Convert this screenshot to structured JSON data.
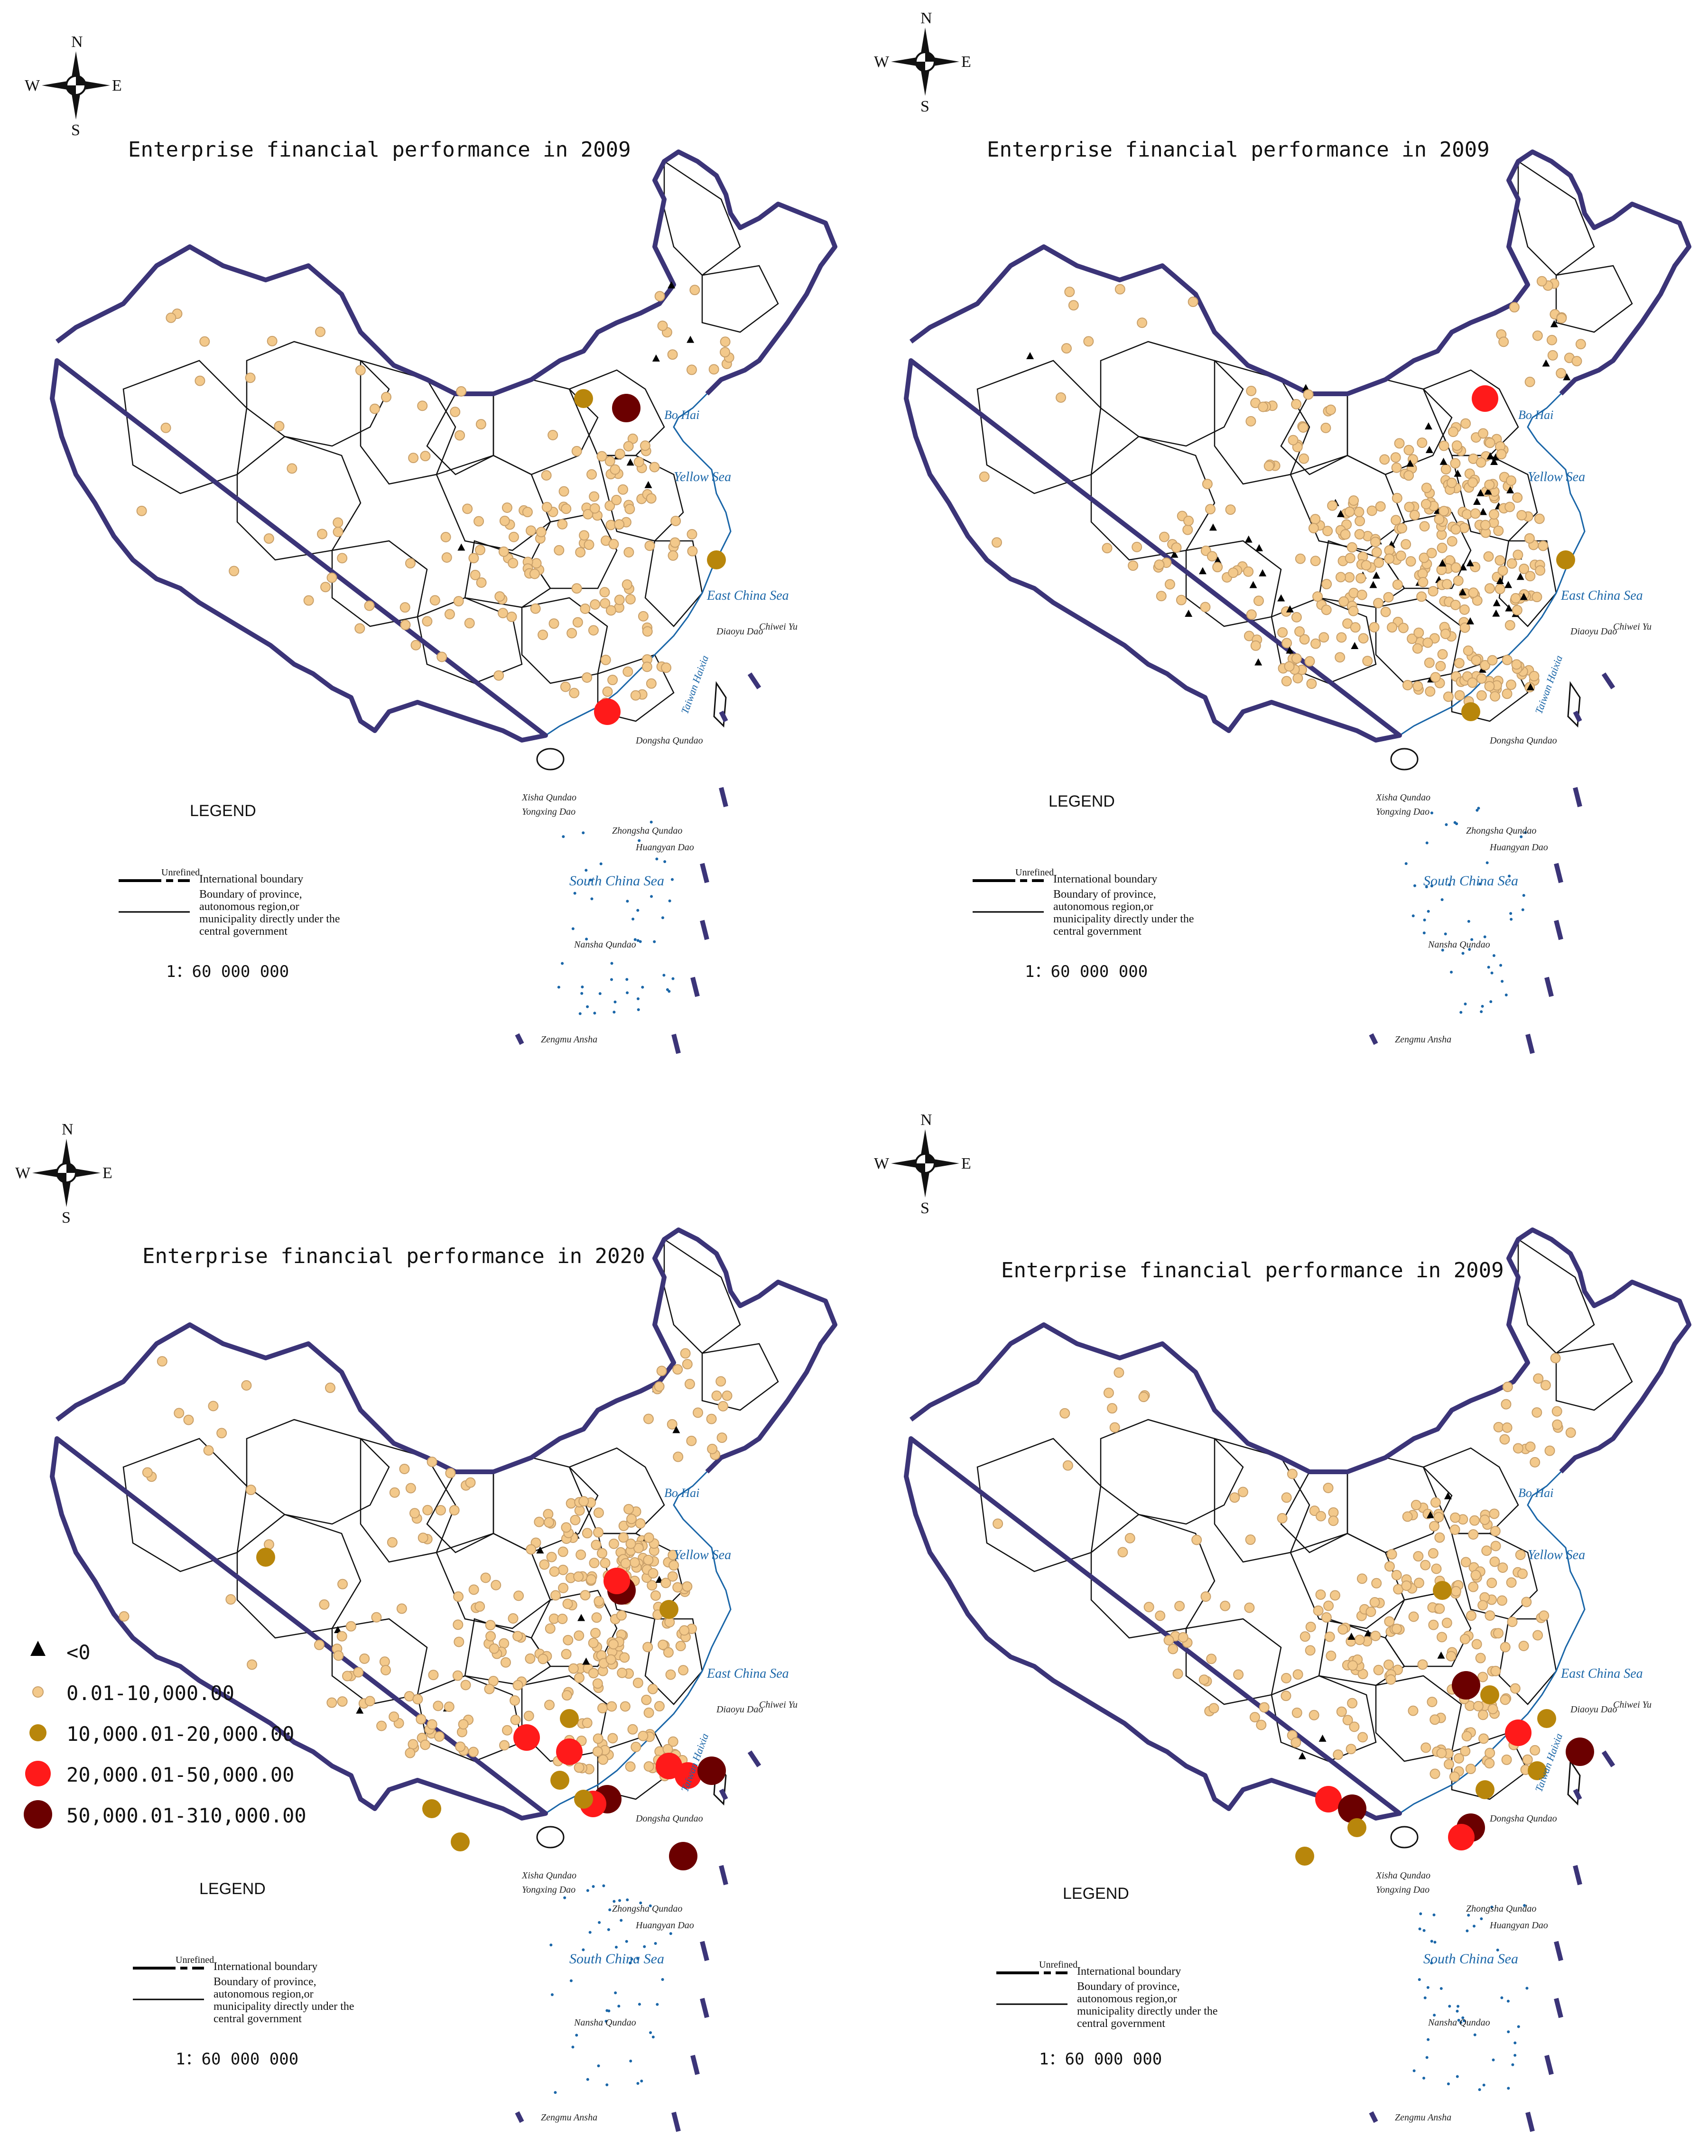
{
  "panels": [
    {
      "title": "Enterprise financial performance in 2009",
      "compass": {
        "n": "N",
        "s": "S",
        "e": "E",
        "w": "W"
      },
      "legend_title": "LEGEND",
      "legend_unrefined": "Unrefined",
      "legend_intl": "International boundary",
      "legend_province": "Boundary of province, autonomous region,or municipality directly under the central government",
      "scale": "1：60 000 000",
      "seas": {
        "bohai": "Bo Hai",
        "yellow": "Yellow Sea",
        "eastchina": "East China Sea",
        "southchina": "South China Sea",
        "taiwan": "Taiwan Haixia"
      },
      "islands": {
        "diaoyu": "Diaoyu Dao",
        "chiwei": "Chiwei Yu",
        "dongsha": "Dongsha Qundao",
        "xisha": "Xisha Qundao",
        "yongxing": "Yongxing Dao",
        "zhongsha": "Zhongsha Qundao",
        "huangyan": "Huangyan Dao",
        "nansha": "Nansha Qundao",
        "zengmu": "Zengmu Ansha"
      }
    },
    {
      "title": "Enterprise financial performance in 2009",
      "compass": {
        "n": "N",
        "s": "S",
        "e": "E",
        "w": "W"
      },
      "legend_title": "LEGEND",
      "legend_unrefined": "Unrefined",
      "legend_intl": "International boundary",
      "legend_province": "Boundary of province, autonomous region,or municipality directly under the central government",
      "scale": "1：60 000 000",
      "seas": {
        "bohai": "Bo Hai",
        "yellow": "Yellow Sea",
        "eastchina": "East China Sea",
        "southchina": "South China Sea",
        "taiwan": "Taiwan Haixia"
      },
      "islands": {
        "diaoyu": "Diaoyu Dao",
        "chiwei": "Chiwei Yu",
        "dongsha": "Dongsha Qundao",
        "xisha": "Xisha Qundao",
        "yongxing": "Yongxing Dao",
        "zhongsha": "Zhongsha Qundao",
        "huangyan": "Huangyan Dao",
        "nansha": "Nansha Qundao",
        "zengmu": "Zengmu Ansha"
      }
    },
    {
      "title": "Enterprise financial performance in 2020",
      "compass": {
        "n": "N",
        "s": "S",
        "e": "E",
        "w": "W"
      },
      "legend_title": "LEGEND",
      "legend_unrefined": "Unrefined",
      "legend_intl": "International boundary",
      "legend_province": "Boundary of province, autonomous region,or municipality directly under the central government",
      "scale": "1：60 000 000",
      "seas": {
        "bohai": "Bo Hai",
        "yellow": "Yellow Sea",
        "eastchina": "East China Sea",
        "southchina": "South China Sea",
        "taiwan": "Taiwan Haixia"
      },
      "islands": {
        "diaoyu": "Diaoyu Dao",
        "chiwei": "Chiwei Yu",
        "dongsha": "Dongsha Qundao",
        "xisha": "Xisha Qundao",
        "yongxing": "Yongxing Dao",
        "zhongsha": "Zhongsha Qundao",
        "huangyan": "Huangyan Dao",
        "nansha": "Nansha Qundao",
        "zengmu": "Zengmu Ansha"
      }
    },
    {
      "title": "Enterprise financial performance in 2009",
      "compass": {
        "n": "N",
        "s": "S",
        "e": "E",
        "w": "W"
      },
      "legend_title": "LEGEND",
      "legend_unrefined": "Unrefined",
      "legend_intl": "International boundary",
      "legend_province": "Boundary of province, autonomous region,or municipality directly under the central government",
      "scale": "1：60 000 000",
      "seas": {
        "bohai": "Bo Hai",
        "yellow": "Yellow Sea",
        "eastchina": "East China Sea",
        "southchina": "South China Sea",
        "taiwan": "Taiwan Haixia"
      },
      "islands": {
        "diaoyu": "Diaoyu Dao",
        "chiwei": "Chiwei Yu",
        "dongsha": "Dongsha Qundao",
        "xisha": "Xisha Qundao",
        "yongxing": "Yongxing Dao",
        "zhongsha": "Zhongsha Qundao",
        "huangyan": "Huangyan Dao",
        "nansha": "Nansha Qundao",
        "zengmu": "Zengmu Ansha"
      }
    }
  ],
  "categories": [
    {
      "label": "<0",
      "symbol": "triangle",
      "color": "#000000"
    },
    {
      "label": "0.01-10,000.00",
      "symbol": "circle",
      "color": "#f3c98b"
    },
    {
      "label": "10,000.01-20,000.00",
      "symbol": "circle",
      "color": "#b8860b"
    },
    {
      "label": "20,000.01-50,000.00",
      "symbol": "circle",
      "color": "#ff1a1a"
    },
    {
      "label": "50,000.01-310,000.00",
      "symbol": "circle",
      "color": "#6b0000"
    }
  ],
  "colors": {
    "border": "#3b3478",
    "province": "#111111",
    "water": "#1a66a8"
  }
}
